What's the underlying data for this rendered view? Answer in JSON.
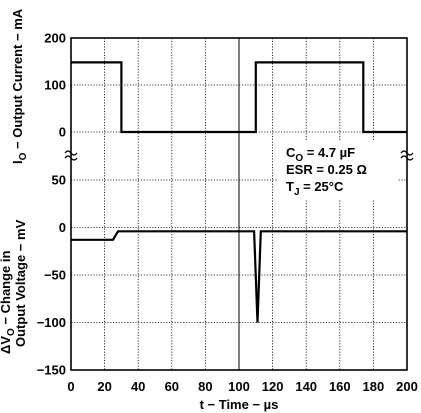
{
  "chart_data": {
    "type": "line",
    "xlabel": "t − Time − µs",
    "x_ticks": [
      "0",
      "20",
      "40",
      "60",
      "80",
      "100",
      "120",
      "140",
      "160",
      "180",
      "200"
    ],
    "xlim": [
      0,
      200
    ],
    "grid": true,
    "panels": [
      {
        "name": "output-current",
        "ylabel_prefix": "I",
        "ylabel_sub": "O",
        "ylabel_rest": " − Output Current − mA",
        "y_ticks": [
          "200",
          "100",
          "0"
        ],
        "ylim": [
          -50,
          200
        ],
        "series": [
          {
            "x": [
              0,
              30,
              30,
              110,
              110,
              174,
              174,
              200
            ],
            "y": [
              148,
              148,
              0,
              0,
              148,
              148,
              0,
              0
            ]
          }
        ]
      },
      {
        "name": "output-voltage-change",
        "ylabel_line1_prefix": "ΔV",
        "ylabel_line1_sub": "O",
        "ylabel_line1_rest": " − Change in",
        "ylabel_line2": "Output Voltage − mV",
        "y_ticks": [
          "50",
          "0",
          "−50",
          "−100",
          "−150"
        ],
        "ylim": [
          -150,
          60
        ],
        "series": [
          {
            "x": [
              0,
              25,
              28,
              105,
              109,
              111,
              113,
              171,
              174,
              200
            ],
            "y": [
              -13,
              -13,
              -4,
              -4,
              -4,
              -100,
              -4,
              -4,
              -4,
              -4
            ]
          }
        ]
      }
    ],
    "annotations": [
      {
        "prefix": "C",
        "sub": "O",
        "rest": " = 4.7 µF"
      },
      {
        "prefix": "ESR = 0.25 Ω",
        "sub": "",
        "rest": ""
      },
      {
        "prefix": "T",
        "sub": "J",
        "rest": " = 25°C"
      }
    ]
  }
}
